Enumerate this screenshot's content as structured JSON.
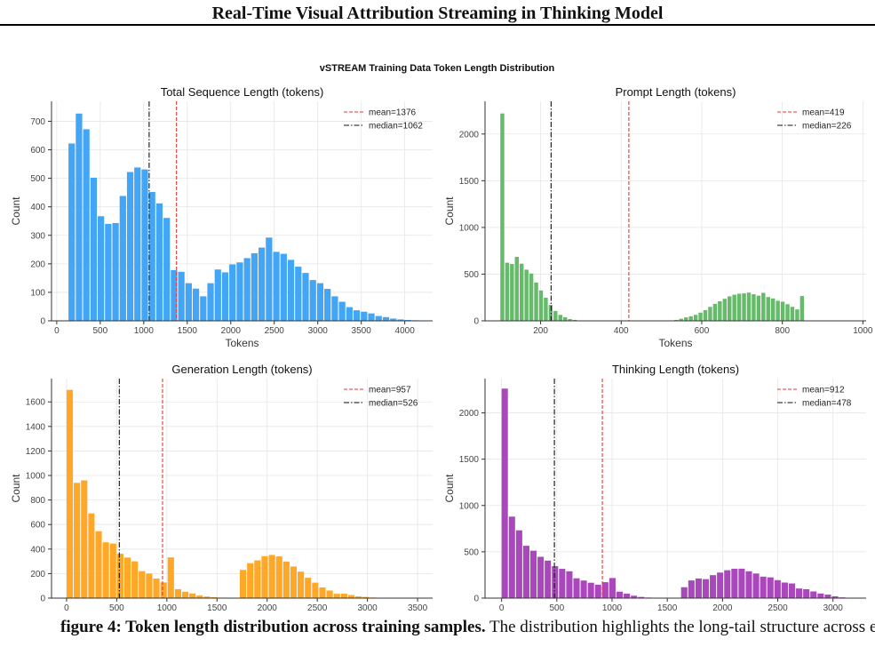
{
  "page": {
    "running_title": "Real-Time Visual Attribution Streaming in Thinking Model",
    "caption_bold": "figure 4: Token length distribution across training samples.",
    "caption_rest": " The distribution highlights the long-tail structure across each length"
  },
  "figure": {
    "suptitle": "vSTREAM Training Data Token Length Distribution"
  },
  "chart_data": [
    {
      "type": "bar",
      "title": "Total Sequence Length (tokens)",
      "xlabel": "Tokens",
      "ylabel": "Count",
      "color": "#42a5f5",
      "xlim": [
        -60,
        4320
      ],
      "ylim": [
        0,
        770
      ],
      "xticks": [
        0,
        500,
        1000,
        1500,
        2000,
        2500,
        3000,
        3500,
        4000
      ],
      "yticks": [
        0,
        100,
        200,
        300,
        400,
        500,
        600,
        700
      ],
      "bin_start": 135,
      "bin_width": 84,
      "values": [
        622,
        727,
        672,
        502,
        367,
        340,
        343,
        438,
        522,
        538,
        531,
        452,
        412,
        361,
        178,
        172,
        132,
        113,
        86,
        132,
        180,
        170,
        198,
        205,
        220,
        237,
        257,
        292,
        242,
        235,
        214,
        190,
        168,
        143,
        132,
        112,
        86,
        67,
        48,
        37,
        32,
        26,
        17,
        13,
        8,
        5,
        3,
        2
      ],
      "mean": 1376,
      "median": 1062,
      "legend": [
        "mean=1376",
        "median=1062"
      ],
      "legend_position": "top-right",
      "grid": true
    },
    {
      "type": "bar",
      "title": "Prompt Length (tokens)",
      "xlabel": "Tokens",
      "ylabel": "Count",
      "color": "#66bb6a",
      "xlim": [
        62,
        1008
      ],
      "ylim": [
        0,
        2350
      ],
      "xticks": [
        200,
        400,
        600,
        800,
        1000
      ],
      "yticks": [
        0,
        500,
        1000,
        1500,
        2000
      ],
      "bin_start": 100,
      "bin_width": 12,
      "values": [
        2220,
        622,
        609,
        685,
        612,
        548,
        507,
        410,
        325,
        248,
        170,
        106,
        64,
        38,
        19,
        10,
        4,
        2,
        1,
        1,
        0,
        0,
        0,
        0,
        0,
        0,
        0,
        0,
        0,
        0,
        0,
        0,
        0,
        0,
        0,
        0,
        10,
        22,
        37,
        49,
        64,
        88,
        115,
        150,
        182,
        210,
        236,
        262,
        280,
        290,
        294,
        302,
        285,
        270,
        300,
        255,
        240,
        215,
        205,
        178,
        150,
        122,
        265
      ],
      "mean": 419,
      "median": 226,
      "legend": [
        "mean=419",
        "median=226"
      ],
      "legend_position": "top-right",
      "grid": true
    },
    {
      "type": "bar",
      "title": "Generation Length (tokens)",
      "xlabel": "Tokens",
      "ylabel": "Count",
      "color": "#ffa726",
      "xlim": [
        -150,
        3650
      ],
      "ylim": [
        0,
        1790
      ],
      "xticks": [
        0,
        500,
        1000,
        1500,
        2000,
        2500,
        3000,
        3500
      ],
      "yticks": [
        0,
        200,
        400,
        600,
        800,
        1000,
        1200,
        1400,
        1600
      ],
      "bin_start": 0,
      "bin_width": 72,
      "values": [
        1698,
        940,
        960,
        691,
        545,
        455,
        445,
        362,
        331,
        300,
        220,
        200,
        160,
        128,
        332,
        73,
        52,
        38,
        21,
        13,
        8,
        4,
        2,
        0,
        230,
        285,
        308,
        342,
        352,
        340,
        298,
        258,
        216,
        166,
        126,
        87,
        62,
        35,
        36,
        25,
        14,
        10,
        5,
        3,
        2,
        1,
        1,
        0
      ],
      "mean": 957,
      "median": 526,
      "legend": [
        "mean=957",
        "median=526"
      ],
      "legend_position": "top-right",
      "grid": true
    },
    {
      "type": "bar",
      "title": "Thinking Length (tokens)",
      "xlabel": "Tokens",
      "ylabel": "Count",
      "color": "#ab47bc",
      "xlim": [
        -150,
        3300
      ],
      "ylim": [
        0,
        2370
      ],
      "xticks": [
        0,
        500,
        1000,
        1500,
        2000,
        2500,
        3000
      ],
      "yticks": [
        0,
        500,
        1000,
        1500,
        2000
      ],
      "bin_start": 0,
      "bin_width": 65,
      "values": [
        2262,
        880,
        732,
        565,
        512,
        446,
        405,
        345,
        316,
        290,
        214,
        190,
        166,
        145,
        172,
        217,
        70,
        48,
        26,
        13,
        6,
        2,
        0,
        0,
        0,
        118,
        191,
        212,
        205,
        248,
        276,
        301,
        317,
        318,
        290,
        266,
        232,
        224,
        194,
        168,
        158,
        104,
        96,
        72,
        50,
        38,
        20,
        8,
        3,
        2,
        1
      ],
      "mean": 912,
      "median": 478,
      "legend": [
        "mean=912",
        "median=478"
      ],
      "legend_position": "top-right",
      "grid": true
    }
  ]
}
